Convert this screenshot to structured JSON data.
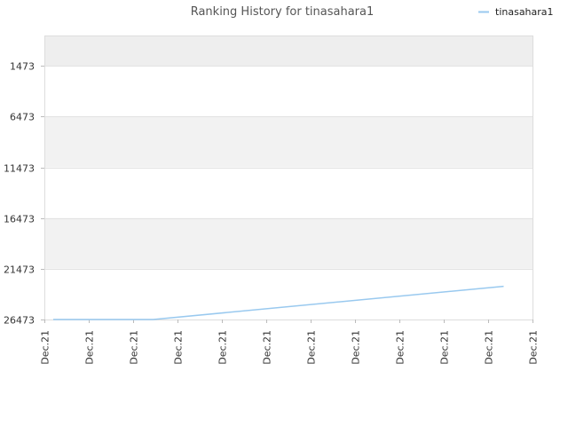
{
  "chart_data": {
    "type": "line",
    "title": "Ranking History for tinasahara1",
    "xlabel": "",
    "ylabel": "",
    "y_inverted": true,
    "ylim": [
      26473,
      -1527
    ],
    "y_ticks": [
      1473,
      6473,
      11473,
      16473,
      21473,
      26473
    ],
    "y_tick_labels": [
      "1473",
      "6473",
      "11473",
      "16473",
      "21473",
      "26473"
    ],
    "x_tick_labels": [
      "Dec.21",
      "Dec.21",
      "Dec.21",
      "Dec.21",
      "Dec.21",
      "Dec.21",
      "Dec.21",
      "Dec.21",
      "Dec.21",
      "Dec.21",
      "Dec.21",
      "Dec.21"
    ],
    "grid": true,
    "legend_position": "top-right",
    "series": [
      {
        "name": "tinasahara1",
        "color": "#99c9ef",
        "x": [
          0.2,
          2.45,
          10.35
        ],
        "values": [
          26473,
          26473,
          23200
        ]
      }
    ]
  }
}
